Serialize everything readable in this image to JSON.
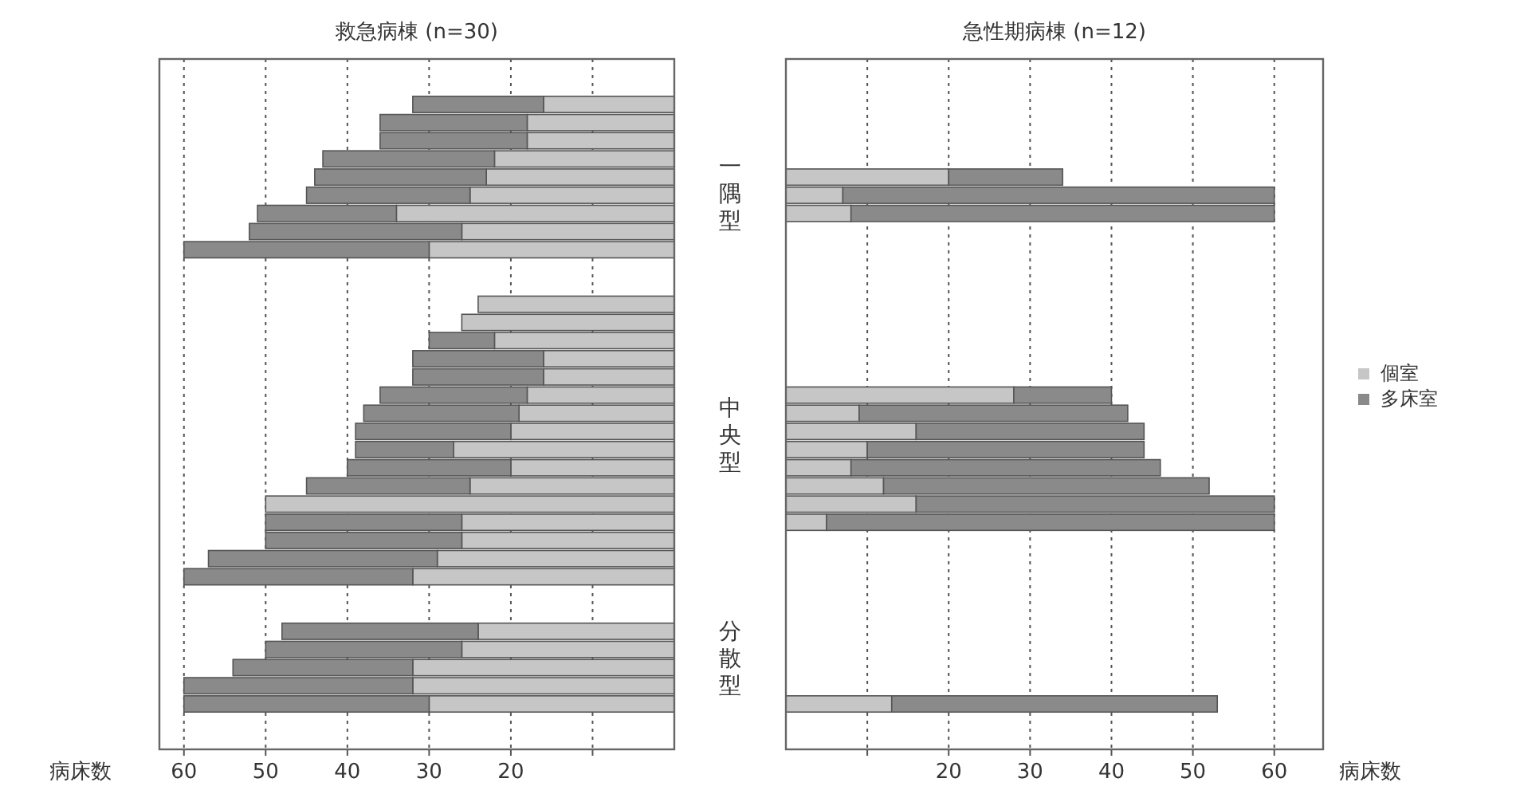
{
  "chart_data": [
    {
      "type": "bar",
      "orientation": "horizontal",
      "stacked": true,
      "title": "救急病棟 (n=30)",
      "xlabel": "病床数",
      "categories": [
        null,
        null,
        null,
        null,
        null,
        null,
        null,
        null,
        null,
        null,
        null,
        null,
        null,
        null,
        null,
        null,
        null,
        null,
        null,
        null,
        null,
        null,
        null,
        null,
        null,
        null,
        null,
        null,
        null,
        null,
        null,
        null,
        null,
        null,
        null,
        null,
        null,
        null
      ],
      "series": [
        {
          "color": "#c6c6c6",
          "values": [
            null,
            null,
            16,
            18,
            18,
            22,
            23,
            25,
            34,
            26,
            30,
            null,
            null,
            24,
            26,
            22,
            16,
            16,
            18,
            19,
            20,
            27,
            20,
            25,
            50,
            26,
            26,
            29,
            32,
            null,
            null,
            24,
            26,
            32,
            32,
            30,
            null,
            null
          ]
        },
        {
          "color": "#8a8a8a",
          "values": [
            null,
            null,
            16,
            18,
            18,
            21,
            21,
            20,
            17,
            26,
            30,
            null,
            null,
            0,
            0,
            8,
            16,
            16,
            18,
            19,
            19,
            12,
            20,
            20,
            0,
            24,
            24,
            28,
            28,
            null,
            null,
            24,
            24,
            22,
            28,
            30,
            null,
            null
          ]
        }
      ],
      "xlim": [
        63,
        0
      ],
      "xticks": [
        60,
        50,
        40,
        30,
        20,
        {
          "value": 10,
          "label": null
        }
      ],
      "grid": "x",
      "legend": false,
      "annotations": [
        "一隅型",
        "中央型",
        "分散型"
      ]
    },
    {
      "type": "bar",
      "orientation": "horizontal",
      "stacked": true,
      "title": "急性期病棟 (n=12)",
      "xlabel": "病床数",
      "categories": [
        null,
        null,
        null,
        null,
        null,
        null,
        null,
        null,
        null,
        null,
        null,
        null,
        null,
        null,
        null,
        null,
        null,
        null,
        null,
        null,
        null,
        null,
        null,
        null,
        null,
        null,
        null,
        null,
        null,
        null,
        null,
        null,
        null,
        null,
        null,
        null,
        null,
        null
      ],
      "series": [
        {
          "name": "個室",
          "color": "#c6c6c6",
          "values": [
            null,
            null,
            null,
            null,
            null,
            null,
            20,
            7,
            8,
            null,
            null,
            null,
            null,
            null,
            null,
            null,
            null,
            null,
            28,
            9,
            16,
            10,
            8,
            12,
            16,
            5,
            null,
            null,
            null,
            null,
            null,
            null,
            null,
            null,
            null,
            13,
            null,
            null
          ]
        },
        {
          "name": "多床室",
          "color": "#8a8a8a",
          "values": [
            null,
            null,
            null,
            null,
            null,
            null,
            14,
            53,
            52,
            null,
            null,
            null,
            null,
            null,
            null,
            null,
            null,
            null,
            12,
            33,
            28,
            34,
            38,
            40,
            44,
            55,
            null,
            null,
            null,
            null,
            null,
            null,
            null,
            null,
            null,
            40,
            null,
            null
          ]
        }
      ],
      "xlim": [
        0,
        66
      ],
      "xticks": [
        {
          "value": 10,
          "label": null
        },
        20,
        30,
        40,
        50,
        60
      ],
      "grid": "x",
      "legend": "right"
    }
  ]
}
